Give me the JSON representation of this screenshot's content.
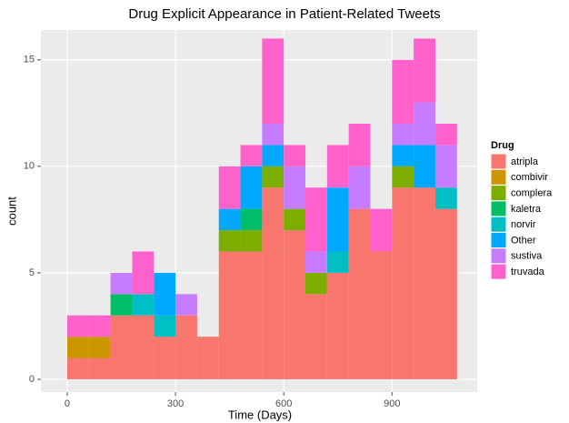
{
  "chart_data": {
    "type": "histogram",
    "title": "Drug Explicit Appearance in Patient-Related Tweets",
    "x_label": "Time (Days)",
    "y_label": "count",
    "legend_title": "Drug",
    "bins": [
      0,
      60,
      120,
      180,
      240,
      300,
      360,
      420,
      480,
      540,
      600,
      660,
      720,
      780,
      840,
      900,
      960,
      1020,
      1080
    ],
    "series": [
      {
        "name": "atripla",
        "color": "#F8766D",
        "values": [
          1,
          1,
          3,
          3,
          2,
          3,
          2,
          6,
          6,
          9,
          7,
          4,
          5,
          8,
          6,
          9,
          9,
          8
        ]
      },
      {
        "name": "combivir",
        "color": "#CD9600",
        "values": [
          1,
          1,
          0,
          0,
          0,
          0,
          0,
          0,
          0,
          0,
          0,
          0,
          0,
          0,
          0,
          0,
          0,
          0
        ]
      },
      {
        "name": "complera",
        "color": "#7CAE00",
        "values": [
          0,
          0,
          0,
          0,
          0,
          0,
          0,
          1,
          1,
          1,
          1,
          1,
          0,
          0,
          0,
          1,
          0,
          0
        ]
      },
      {
        "name": "kaletra",
        "color": "#00BE67",
        "values": [
          0,
          0,
          1,
          0,
          0,
          0,
          0,
          0,
          1,
          0,
          0,
          0,
          0,
          0,
          0,
          0,
          0,
          0
        ]
      },
      {
        "name": "norvir",
        "color": "#00BFC4",
        "values": [
          0,
          0,
          0,
          1,
          1,
          0,
          0,
          0,
          0,
          0,
          0,
          0,
          1,
          0,
          0,
          0,
          0,
          1
        ]
      },
      {
        "name": "Other",
        "color": "#00A9FF",
        "values": [
          0,
          0,
          0,
          0,
          2,
          0,
          0,
          1,
          2,
          1,
          0,
          0,
          3,
          0,
          0,
          1,
          2,
          0
        ]
      },
      {
        "name": "sustiva",
        "color": "#C77CFF",
        "values": [
          0,
          0,
          1,
          0,
          0,
          1,
          0,
          0,
          0,
          1,
          2,
          1,
          0,
          2,
          0,
          1,
          2,
          2
        ]
      },
      {
        "name": "truvada",
        "color": "#FF61CC",
        "values": [
          1,
          1,
          0,
          2,
          0,
          0,
          0,
          2,
          1,
          4,
          1,
          3,
          2,
          2,
          2,
          3,
          3,
          1
        ]
      }
    ],
    "xlim": [
      -73,
      1136
    ],
    "ylim": [
      -0.6,
      16.4
    ],
    "xticks": [
      0,
      300,
      600,
      900
    ],
    "yticks": [
      0,
      5,
      10,
      15
    ],
    "grid": true,
    "legend": "right"
  }
}
